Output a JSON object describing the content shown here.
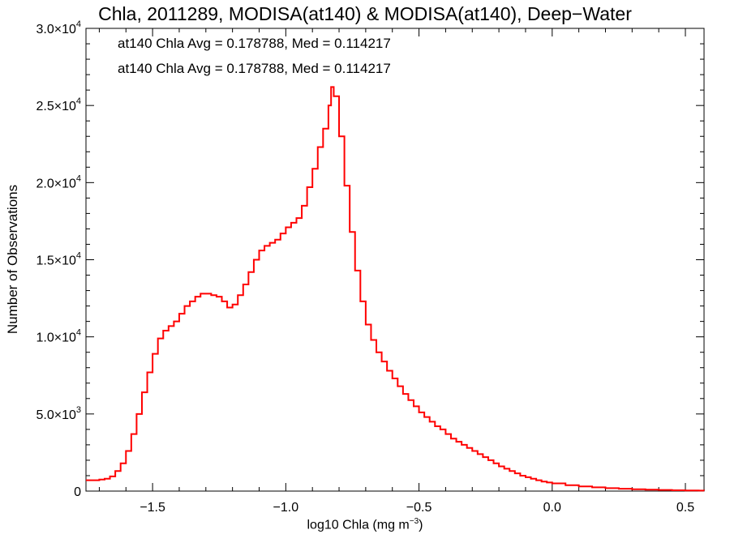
{
  "chart_data": {
    "type": "line",
    "title": "Chla, 2011289, MODISA(at140) & MODISA(at140), Deep−Water",
    "xlabel_base": "log10 Chla (mg m",
    "xlabel_sup": "−3",
    "xlabel_end": ")",
    "ylabel": "Number of Observations",
    "xlim": [
      -1.75,
      0.57
    ],
    "ylim": [
      0,
      30000
    ],
    "x_ticks": [
      -1.5,
      -1.0,
      -0.5,
      0.0,
      0.5
    ],
    "x_tick_labels": [
      "−1.5",
      "−1.0",
      "−0.5",
      "0.0",
      "0.5"
    ],
    "y_ticks": [
      0,
      5000,
      10000,
      15000,
      20000,
      25000,
      30000
    ],
    "y_tick_labels": [
      {
        "mantissa": "0",
        "exp": ""
      },
      {
        "mantissa": "5.0×10",
        "exp": "3"
      },
      {
        "mantissa": "1.0×10",
        "exp": "4"
      },
      {
        "mantissa": "1.5×10",
        "exp": "4"
      },
      {
        "mantissa": "2.0×10",
        "exp": "4"
      },
      {
        "mantissa": "2.5×10",
        "exp": "4"
      },
      {
        "mantissa": "3.0×10",
        "exp": "4"
      }
    ],
    "grid": false,
    "legend": [
      {
        "text": "at140 Chla Avg = 0.178788, Med = 0.114217",
        "color": "#000000"
      },
      {
        "text": "at140 Chla Avg = 0.178788, Med = 0.114217",
        "color": "#ff0000"
      }
    ],
    "series": [
      {
        "color": "#ff0000",
        "points": [
          [
            -1.75,
            700
          ],
          [
            -1.7,
            750
          ],
          [
            -1.68,
            800
          ],
          [
            -1.66,
            950
          ],
          [
            -1.64,
            1300
          ],
          [
            -1.62,
            1800
          ],
          [
            -1.6,
            2600
          ],
          [
            -1.58,
            3700
          ],
          [
            -1.56,
            5000
          ],
          [
            -1.54,
            6400
          ],
          [
            -1.52,
            7700
          ],
          [
            -1.5,
            8900
          ],
          [
            -1.48,
            9900
          ],
          [
            -1.46,
            10400
          ],
          [
            -1.44,
            10700
          ],
          [
            -1.42,
            11000
          ],
          [
            -1.4,
            11500
          ],
          [
            -1.38,
            12000
          ],
          [
            -1.36,
            12300
          ],
          [
            -1.34,
            12600
          ],
          [
            -1.32,
            12800
          ],
          [
            -1.3,
            12800
          ],
          [
            -1.28,
            12700
          ],
          [
            -1.26,
            12600
          ],
          [
            -1.24,
            12300
          ],
          [
            -1.22,
            11900
          ],
          [
            -1.2,
            12100
          ],
          [
            -1.18,
            12700
          ],
          [
            -1.16,
            13400
          ],
          [
            -1.14,
            14200
          ],
          [
            -1.12,
            15000
          ],
          [
            -1.1,
            15600
          ],
          [
            -1.08,
            15900
          ],
          [
            -1.06,
            16100
          ],
          [
            -1.04,
            16300
          ],
          [
            -1.02,
            16700
          ],
          [
            -1.0,
            17100
          ],
          [
            -0.98,
            17400
          ],
          [
            -0.96,
            17700
          ],
          [
            -0.94,
            18500
          ],
          [
            -0.92,
            19700
          ],
          [
            -0.9,
            20900
          ],
          [
            -0.88,
            22300
          ],
          [
            -0.86,
            23500
          ],
          [
            -0.84,
            25000
          ],
          [
            -0.83,
            26200
          ],
          [
            -0.82,
            25600
          ],
          [
            -0.8,
            23000
          ],
          [
            -0.78,
            19800
          ],
          [
            -0.76,
            16800
          ],
          [
            -0.74,
            14300
          ],
          [
            -0.72,
            12300
          ],
          [
            -0.7,
            10800
          ],
          [
            -0.68,
            9800
          ],
          [
            -0.66,
            9000
          ],
          [
            -0.64,
            8400
          ],
          [
            -0.62,
            7800
          ],
          [
            -0.6,
            7300
          ],
          [
            -0.58,
            6800
          ],
          [
            -0.56,
            6300
          ],
          [
            -0.54,
            5900
          ],
          [
            -0.52,
            5500
          ],
          [
            -0.5,
            5100
          ],
          [
            -0.48,
            4800
          ],
          [
            -0.46,
            4500
          ],
          [
            -0.44,
            4200
          ],
          [
            -0.42,
            4000
          ],
          [
            -0.4,
            3700
          ],
          [
            -0.38,
            3400
          ],
          [
            -0.36,
            3200
          ],
          [
            -0.34,
            3000
          ],
          [
            -0.32,
            2800
          ],
          [
            -0.3,
            2600
          ],
          [
            -0.28,
            2400
          ],
          [
            -0.26,
            2200
          ],
          [
            -0.24,
            2000
          ],
          [
            -0.22,
            1800
          ],
          [
            -0.2,
            1600
          ],
          [
            -0.18,
            1450
          ],
          [
            -0.16,
            1300
          ],
          [
            -0.14,
            1150
          ],
          [
            -0.12,
            1000
          ],
          [
            -0.1,
            900
          ],
          [
            -0.08,
            800
          ],
          [
            -0.06,
            700
          ],
          [
            -0.04,
            620
          ],
          [
            -0.02,
            560
          ],
          [
            0.0,
            500
          ],
          [
            0.05,
            380
          ],
          [
            0.1,
            300
          ],
          [
            0.15,
            240
          ],
          [
            0.2,
            190
          ],
          [
            0.25,
            150
          ],
          [
            0.3,
            120
          ],
          [
            0.35,
            95
          ],
          [
            0.4,
            75
          ],
          [
            0.45,
            55
          ],
          [
            0.5,
            40
          ],
          [
            0.55,
            30
          ],
          [
            0.57,
            25
          ]
        ]
      }
    ]
  }
}
